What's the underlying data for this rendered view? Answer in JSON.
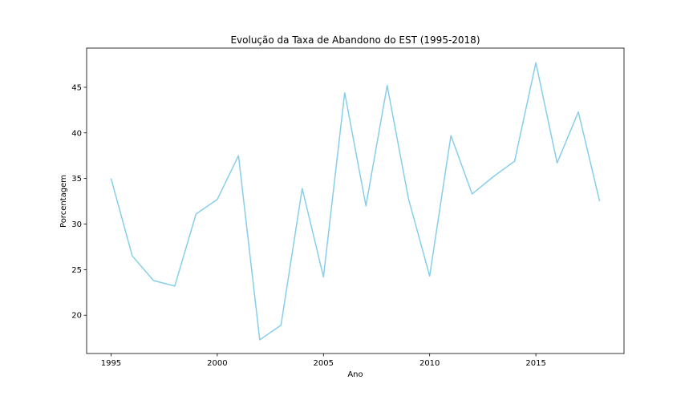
{
  "chart_data": {
    "type": "line",
    "title": "Evolução da Taxa de Abandono do EST (1995-2018)",
    "xlabel": "Ano",
    "ylabel": "Porcentagem",
    "x": [
      1995,
      1996,
      1997,
      1998,
      1999,
      2000,
      2001,
      2002,
      2003,
      2004,
      2005,
      2006,
      2007,
      2008,
      2009,
      2010,
      2011,
      2012,
      2013,
      2014,
      2015,
      2016,
      2017,
      2018
    ],
    "series": [
      {
        "color": "#87ceeb",
        "values": [
          35.0,
          26.5,
          23.8,
          23.2,
          31.1,
          32.7,
          37.5,
          17.3,
          18.9,
          33.9,
          24.2,
          44.4,
          32.0,
          45.2,
          32.8,
          24.3,
          39.7,
          33.3,
          35.2,
          36.9,
          47.7,
          36.7,
          42.3,
          32.5
        ]
      }
    ],
    "xlim": [
      1993.85,
      2019.15
    ],
    "ylim": [
      15.8,
      49.3
    ],
    "xticks": [
      1995,
      2000,
      2005,
      2010,
      2015
    ],
    "yticks": [
      20,
      25,
      30,
      35,
      40,
      45
    ],
    "grid": false,
    "legend": "none"
  }
}
